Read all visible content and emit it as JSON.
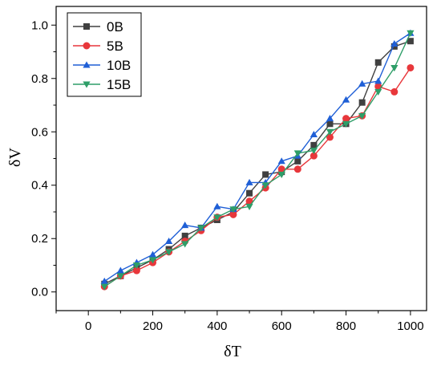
{
  "chart_data": {
    "type": "line",
    "title": "",
    "xlabel": "δT",
    "ylabel": "δV",
    "xlim": [
      -100,
      1050
    ],
    "ylim": [
      -0.07,
      1.07
    ],
    "x_ticks": [
      "0",
      "200",
      "400",
      "600",
      "800",
      "1000"
    ],
    "x_tick_values": [
      0,
      200,
      400,
      600,
      800,
      1000
    ],
    "y_ticks": [
      "0.0",
      "0.2",
      "0.4",
      "0.6",
      "0.8",
      "1.0"
    ],
    "y_tick_values": [
      0.0,
      0.2,
      0.4,
      0.6,
      0.8,
      1.0
    ],
    "grid": false,
    "legend_position": "top-left",
    "x": [
      50,
      100,
      150,
      200,
      250,
      300,
      350,
      400,
      450,
      500,
      550,
      600,
      650,
      700,
      750,
      800,
      850,
      900,
      950,
      1000
    ],
    "series": [
      {
        "name": "0B",
        "color": "#404040",
        "marker": "square",
        "values": [
          0.03,
          0.06,
          0.09,
          0.12,
          0.16,
          0.21,
          0.24,
          0.27,
          0.3,
          0.37,
          0.44,
          0.45,
          0.49,
          0.55,
          0.63,
          0.63,
          0.71,
          0.86,
          0.92,
          0.94
        ]
      },
      {
        "name": "5B",
        "color": "#e8373b",
        "marker": "circle",
        "values": [
          0.02,
          0.06,
          0.08,
          0.11,
          0.15,
          0.19,
          0.23,
          0.28,
          0.29,
          0.34,
          0.39,
          0.46,
          0.46,
          0.51,
          0.58,
          0.65,
          0.66,
          0.77,
          0.75,
          0.84
        ]
      },
      {
        "name": "10B",
        "color": "#1f5fd6",
        "marker": "triangle-up",
        "values": [
          0.04,
          0.08,
          0.11,
          0.14,
          0.19,
          0.25,
          0.24,
          0.32,
          0.31,
          0.41,
          0.41,
          0.49,
          0.51,
          0.59,
          0.65,
          0.72,
          0.78,
          0.79,
          0.93,
          0.97
        ]
      },
      {
        "name": "15B",
        "color": "#2e9e68",
        "marker": "triangle-down",
        "values": [
          0.02,
          0.06,
          0.1,
          0.12,
          0.15,
          0.18,
          0.24,
          0.28,
          0.31,
          0.32,
          0.4,
          0.44,
          0.52,
          0.53,
          0.6,
          0.63,
          0.66,
          0.75,
          0.84,
          0.97
        ]
      }
    ]
  }
}
